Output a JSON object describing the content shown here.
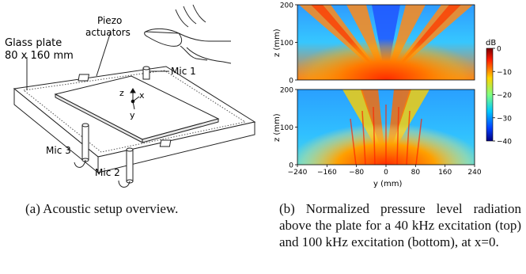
{
  "setup": {
    "label_piezo_1": "Piezo",
    "label_piezo_2": "actuators",
    "label_glass_1": "Glass plate",
    "label_glass_2": "80 x 160 mm",
    "label_mic1": "Mic 1",
    "label_mic2": "Mic 2",
    "label_mic3": "Mic 3",
    "axis_z": "z",
    "axis_x": "x",
    "axis_y": "y"
  },
  "chart_data": [
    {
      "type": "heatmap",
      "title": "",
      "xlabel": "",
      "ylabel": "z (mm)",
      "xlim": [
        -240,
        240
      ],
      "ylim": [
        0,
        200
      ],
      "yticks": [
        "0",
        "100",
        "200"
      ],
      "colorbar": {
        "label": "dB",
        "ticks": [
          "0",
          "−10",
          "−20",
          "−30",
          "−40"
        ],
        "range": [
          -40,
          0
        ]
      }
    },
    {
      "type": "heatmap",
      "title": "",
      "xlabel": "y (mm)",
      "ylabel": "z (mm)",
      "xlim": [
        -240,
        240
      ],
      "ylim": [
        0,
        200
      ],
      "xticks": [
        "−240",
        "−160",
        "−80",
        "0",
        "80",
        "160",
        "240"
      ],
      "yticks": [
        "0",
        "100",
        "200"
      ]
    }
  ],
  "captions": {
    "a": "(a) Acoustic setup overview.",
    "b": "(b) Normalized pressure level radiation above the plate for a 40 kHz excitation (top) and 100 kHz excitation (bottom), at x=0."
  }
}
